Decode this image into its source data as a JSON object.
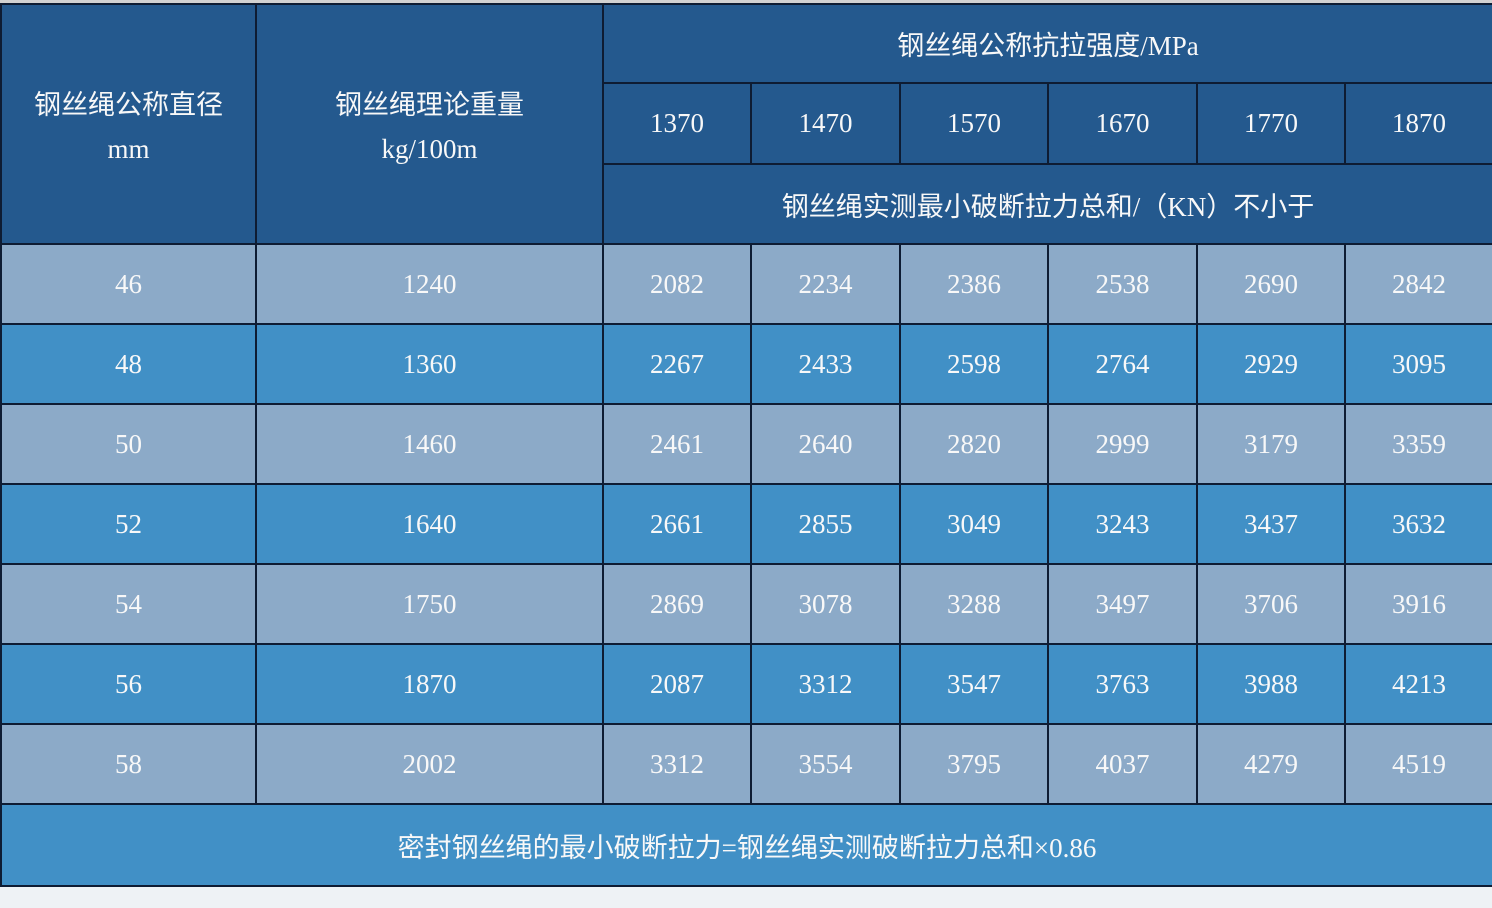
{
  "colors": {
    "header_bg": "#24598e",
    "row_light_bg": "#8caac8",
    "row_bright_bg": "#4190c6",
    "footer_bg": "#4190c6",
    "border": "#0e1c33",
    "text": "#f8f8f8",
    "edge_top": "#d2d2d2",
    "edge_bottom": "#eef2f5"
  },
  "table": {
    "header": {
      "diameter_title": "钢丝绳公称直径",
      "diameter_unit": "mm",
      "weight_title": "钢丝绳理论重量",
      "weight_unit": "kg/100m",
      "strength_title": "钢丝绳公称抗拉强度/MPa",
      "strengths": [
        "1370",
        "1470",
        "1570",
        "1670",
        "1770",
        "1870"
      ],
      "breaking_title": "钢丝绳实测最小破断拉力总和/（KN）不小于"
    },
    "rows": [
      {
        "diameter": "46",
        "weight": "1240",
        "values": [
          "2082",
          "2234",
          "2386",
          "2538",
          "2690",
          "2842"
        ]
      },
      {
        "diameter": "48",
        "weight": "1360",
        "values": [
          "2267",
          "2433",
          "2598",
          "2764",
          "2929",
          "3095"
        ]
      },
      {
        "diameter": "50",
        "weight": "1460",
        "values": [
          "2461",
          "2640",
          "2820",
          "2999",
          "3179",
          "3359"
        ]
      },
      {
        "diameter": "52",
        "weight": "1640",
        "values": [
          "2661",
          "2855",
          "3049",
          "3243",
          "3437",
          "3632"
        ]
      },
      {
        "diameter": "54",
        "weight": "1750",
        "values": [
          "2869",
          "3078",
          "3288",
          "3497",
          "3706",
          "3916"
        ]
      },
      {
        "diameter": "56",
        "weight": "1870",
        "values": [
          "2087",
          "3312",
          "3547",
          "3763",
          "3988",
          "4213"
        ]
      },
      {
        "diameter": "58",
        "weight": "2002",
        "values": [
          "3312",
          "3554",
          "3795",
          "4037",
          "4279",
          "4519"
        ]
      }
    ],
    "footer_note": "密封钢丝绳的最小破断拉力=钢丝绳实测破断拉力总和×0.86"
  },
  "chart_data": {
    "type": "table",
    "title": "钢丝绳公称抗拉强度/MPa",
    "columns": [
      "钢丝绳公称直径 mm",
      "钢丝绳理论重量 kg/100m",
      "1370",
      "1470",
      "1570",
      "1670",
      "1770",
      "1870"
    ],
    "column_group_note": "钢丝绳实测最小破断拉力总和/（KN）不小于",
    "rows": [
      [
        46,
        1240,
        2082,
        2234,
        2386,
        2538,
        2690,
        2842
      ],
      [
        48,
        1360,
        2267,
        2433,
        2598,
        2764,
        2929,
        3095
      ],
      [
        50,
        1460,
        2461,
        2640,
        2820,
        2999,
        3179,
        3359
      ],
      [
        52,
        1640,
        2661,
        2855,
        3049,
        3243,
        3437,
        3632
      ],
      [
        54,
        1750,
        2869,
        3078,
        3288,
        3497,
        3706,
        3916
      ],
      [
        56,
        1870,
        2087,
        3312,
        3547,
        3763,
        3988,
        4213
      ],
      [
        58,
        2002,
        3312,
        3554,
        3795,
        4037,
        4279,
        4519
      ]
    ],
    "note": "密封钢丝绳的最小破断拉力=钢丝绳实测破断拉力总和×0.86"
  }
}
